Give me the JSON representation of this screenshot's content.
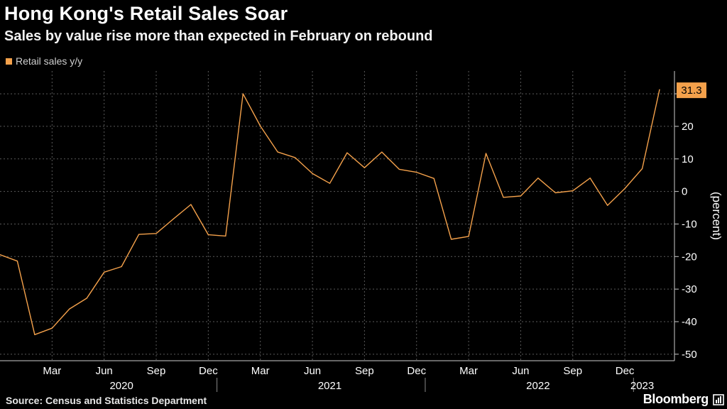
{
  "header": {
    "title": "Hong Kong's Retail Sales Soar",
    "subtitle": "Sales by value rise more than expected in February on rebound"
  },
  "footer": {
    "source": "Source: Census and Statistics Department",
    "brand": "Bloomberg"
  },
  "colors": {
    "background": "#000000",
    "line": "#f4a14b",
    "grid": "#5a5a5a",
    "text": "#ffffff"
  },
  "chart_data": {
    "type": "line",
    "legend_position": "top-left",
    "grid": true,
    "ylabel": "(percent)",
    "ylim": [
      -52,
      37
    ],
    "yticks": [
      -50,
      -40,
      -30,
      -20,
      -10,
      0,
      10,
      20,
      30
    ],
    "last_value_label": "31.3",
    "x_axis": {
      "month_ticks": [
        "Mar",
        "Jun",
        "Sep",
        "Dec",
        "Mar",
        "Jun",
        "Sep",
        "Dec",
        "Mar",
        "Jun",
        "Sep",
        "Dec"
      ],
      "month_tick_dates": [
        "2020-03",
        "2020-06",
        "2020-09",
        "2020-12",
        "2021-03",
        "2021-06",
        "2021-09",
        "2021-12",
        "2022-03",
        "2022-06",
        "2022-09",
        "2022-12"
      ],
      "year_labels": [
        "2020",
        "2021",
        "2022",
        "2023"
      ],
      "year_label_dates": [
        "2020-07",
        "2021-07",
        "2022-07",
        "2023-01"
      ]
    },
    "series": [
      {
        "name": "Retail sales y/y",
        "dates": [
          "2019-12",
          "2020-01",
          "2020-02",
          "2020-03",
          "2020-04",
          "2020-05",
          "2020-06",
          "2020-07",
          "2020-08",
          "2020-09",
          "2020-10",
          "2020-11",
          "2020-12",
          "2021-01",
          "2021-02",
          "2021-03",
          "2021-04",
          "2021-05",
          "2021-06",
          "2021-07",
          "2021-08",
          "2021-09",
          "2021-10",
          "2021-11",
          "2021-12",
          "2022-01",
          "2022-02",
          "2022-03",
          "2022-04",
          "2022-05",
          "2022-06",
          "2022-07",
          "2022-08",
          "2022-09",
          "2022-10",
          "2022-11",
          "2022-12",
          "2023-01",
          "2023-02"
        ],
        "values": [
          -19.4,
          -21.4,
          -44.0,
          -42.0,
          -36.1,
          -32.8,
          -24.8,
          -23.1,
          -13.2,
          -12.9,
          -8.4,
          -4.0,
          -13.3,
          -13.7,
          30.0,
          20.1,
          12.1,
          10.4,
          5.5,
          2.5,
          11.9,
          7.3,
          12.1,
          6.8,
          5.9,
          4.0,
          -14.7,
          -13.8,
          11.7,
          -1.8,
          -1.4,
          4.1,
          -0.4,
          0.2,
          4.1,
          -4.3,
          0.9,
          7.0,
          31.3
        ]
      }
    ]
  }
}
